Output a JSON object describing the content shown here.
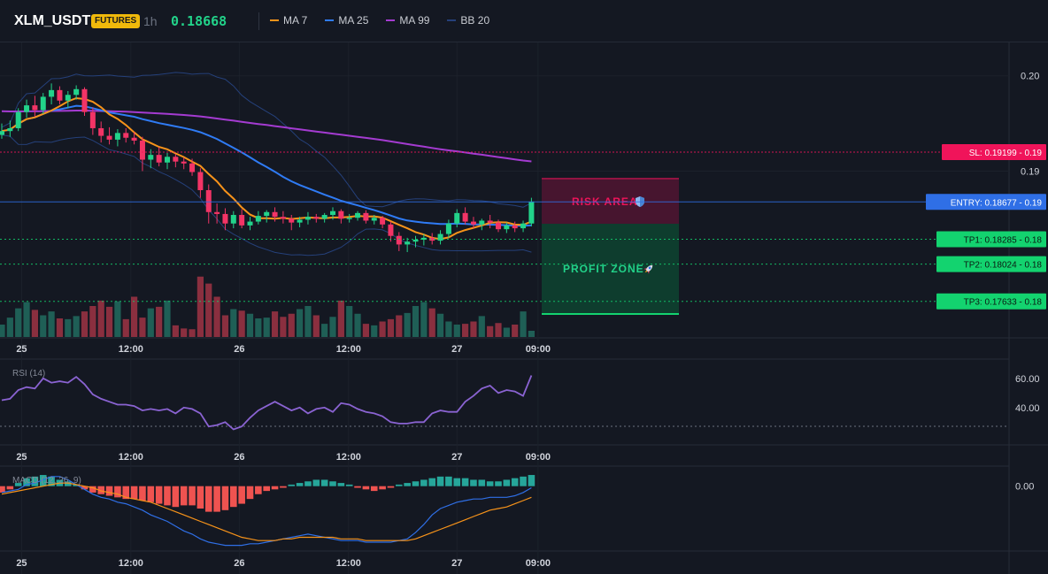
{
  "header": {
    "symbol": "XLM_USDT",
    "badge": "FUTURES",
    "interval": "1h",
    "last_price": "0.18668"
  },
  "legend": [
    {
      "name": "MA 7",
      "color": "#f7931a"
    },
    {
      "name": "MA 25",
      "color": "#2f7bf5"
    },
    {
      "name": "MA 99",
      "color": "#a43bd1"
    },
    {
      "name": "BB 20",
      "color": "#25407a"
    }
  ],
  "colors": {
    "up": "#22d38a",
    "down": "#f23466",
    "vol_up": "#1f5f56",
    "vol_down": "#8a2f3f",
    "sl": "#f0145a",
    "entry": "#2f6fe6",
    "tp": "#13d36f",
    "risk_fill": "#5a1a36",
    "profit_fill": "#0f4a35",
    "rsi": "#8a63d2",
    "macd_line": "#2f6fe6",
    "signal_line": "#f7931a",
    "hist_pos": "#26a69a",
    "hist_neg": "#ef5350"
  },
  "x_axis_labels": [
    "25",
    "12:00",
    "26",
    "12:00",
    "27",
    "09:00"
  ],
  "levels": {
    "sl": {
      "label": "SL: 0.19199 - 0.19",
      "value": 0.19199
    },
    "entry": {
      "label": "ENTRY: 0.18677 - 0.19",
      "value": 0.18677
    },
    "tp1": {
      "label": "TP1: 0.18285 - 0.18",
      "value": 0.18285
    },
    "tp2": {
      "label": "TP2: 0.18024 - 0.18",
      "value": 0.18024
    },
    "tp3": {
      "label": "TP3: 0.17633 - 0.18",
      "value": 0.17633
    }
  },
  "zones": {
    "risk_label": "RISK AREA",
    "profit_label": "PROFIT ZONE"
  },
  "panels": {
    "rsi_label": "RSI (14)",
    "macd_label": "MACD (12, 26, 9)"
  },
  "chart_data": [
    {
      "type": "candlestick",
      "title": "XLM_USDT",
      "y_ticks": [
        "0.20",
        "0.19"
      ],
      "y_tick_values": [
        0.2,
        0.19
      ],
      "ylim": [
        0.1725,
        0.2035
      ],
      "candles": [
        [
          0.1938,
          0.195,
          0.1934,
          0.1942
        ],
        [
          0.1942,
          0.1953,
          0.1936,
          0.1945
        ],
        [
          0.1945,
          0.1966,
          0.1942,
          0.1962
        ],
        [
          0.1962,
          0.1975,
          0.1956,
          0.1969
        ],
        [
          0.1969,
          0.1979,
          0.1957,
          0.1964
        ],
        [
          0.1964,
          0.1982,
          0.196,
          0.1978
        ],
        [
          0.1978,
          0.1992,
          0.197,
          0.1985
        ],
        [
          0.1985,
          0.1989,
          0.197,
          0.1974
        ],
        [
          0.1974,
          0.1984,
          0.1966,
          0.198
        ],
        [
          0.198,
          0.199,
          0.1975,
          0.1986
        ],
        [
          0.1986,
          0.1988,
          0.1958,
          0.1962
        ],
        [
          0.1962,
          0.1967,
          0.1938,
          0.1945
        ],
        [
          0.1945,
          0.1952,
          0.193,
          0.1937
        ],
        [
          0.1937,
          0.1946,
          0.1928,
          0.1933
        ],
        [
          0.1933,
          0.1944,
          0.1926,
          0.194
        ],
        [
          0.194,
          0.1945,
          0.193,
          0.1935
        ],
        [
          0.1935,
          0.1941,
          0.1928,
          0.1932
        ],
        [
          0.1932,
          0.1936,
          0.19,
          0.1912
        ],
        [
          0.1912,
          0.1923,
          0.1903,
          0.1917
        ],
        [
          0.1917,
          0.1925,
          0.1905,
          0.1909
        ],
        [
          0.1909,
          0.1919,
          0.1902,
          0.1915
        ],
        [
          0.1915,
          0.1918,
          0.1904,
          0.191
        ],
        [
          0.191,
          0.1914,
          0.1902,
          0.1908
        ],
        [
          0.1908,
          0.1913,
          0.1895,
          0.1899
        ],
        [
          0.1899,
          0.1903,
          0.1872,
          0.188
        ],
        [
          0.188,
          0.1886,
          0.1845,
          0.1857
        ],
        [
          0.1857,
          0.1866,
          0.1845,
          0.1855
        ],
        [
          0.1855,
          0.1861,
          0.1838,
          0.1845
        ],
        [
          0.1845,
          0.1858,
          0.184,
          0.1854
        ],
        [
          0.1854,
          0.186,
          0.184,
          0.1843
        ],
        [
          0.1843,
          0.1852,
          0.1838,
          0.1847
        ],
        [
          0.1847,
          0.1858,
          0.1844,
          0.1853
        ],
        [
          0.1853,
          0.1859,
          0.1846,
          0.1857
        ],
        [
          0.1857,
          0.1862,
          0.1847,
          0.1852
        ],
        [
          0.1852,
          0.1858,
          0.1845,
          0.185
        ],
        [
          0.185,
          0.1854,
          0.1838,
          0.1846
        ],
        [
          0.1846,
          0.1852,
          0.1841,
          0.1849
        ],
        [
          0.1849,
          0.1857,
          0.1844,
          0.1852
        ],
        [
          0.1852,
          0.1855,
          0.1846,
          0.185
        ],
        [
          0.185,
          0.1856,
          0.1846,
          0.1854
        ],
        [
          0.1854,
          0.1862,
          0.1849,
          0.1858
        ],
        [
          0.1858,
          0.186,
          0.1845,
          0.185
        ],
        [
          0.185,
          0.1855,
          0.1846,
          0.1851
        ],
        [
          0.1851,
          0.1858,
          0.1848,
          0.1856
        ],
        [
          0.1856,
          0.1859,
          0.1845,
          0.1848
        ],
        [
          0.1848,
          0.1854,
          0.1844,
          0.1851
        ],
        [
          0.1851,
          0.1853,
          0.184,
          0.1844
        ],
        [
          0.1844,
          0.1847,
          0.1826,
          0.1832
        ],
        [
          0.1832,
          0.1836,
          0.1816,
          0.1823
        ],
        [
          0.1823,
          0.183,
          0.1815,
          0.1826
        ],
        [
          0.1826,
          0.1832,
          0.182,
          0.1828
        ],
        [
          0.1828,
          0.1834,
          0.1822,
          0.183
        ],
        [
          0.183,
          0.1835,
          0.1823,
          0.1827
        ],
        [
          0.1827,
          0.1838,
          0.1823,
          0.1834
        ],
        [
          0.1834,
          0.1849,
          0.183,
          0.1845
        ],
        [
          0.1845,
          0.186,
          0.1841,
          0.1856
        ],
        [
          0.1856,
          0.1862,
          0.1844,
          0.1847
        ],
        [
          0.1847,
          0.1852,
          0.184,
          0.1844
        ],
        [
          0.1844,
          0.185,
          0.1838,
          0.1848
        ],
        [
          0.1848,
          0.1854,
          0.184,
          0.1846
        ],
        [
          0.1846,
          0.1849,
          0.1836,
          0.1839
        ],
        [
          0.1839,
          0.1846,
          0.1835,
          0.1843
        ],
        [
          0.1843,
          0.1847,
          0.1836,
          0.184
        ],
        [
          0.184,
          0.1848,
          0.1836,
          0.1845
        ],
        [
          0.1845,
          0.1872,
          0.1842,
          0.1868
        ]
      ],
      "volume": [
        16,
        25,
        37,
        45,
        35,
        28,
        33,
        24,
        23,
        27,
        33,
        40,
        47,
        39,
        46,
        23,
        52,
        25,
        37,
        39,
        47,
        15,
        11,
        10,
        78,
        69,
        52,
        28,
        36,
        34,
        30,
        24,
        25,
        33,
        26,
        30,
        36,
        40,
        28,
        17,
        26,
        47,
        40,
        30,
        17,
        15,
        20,
        23,
        28,
        31,
        40,
        45,
        37,
        30,
        20,
        16,
        17,
        20,
        27,
        14,
        18,
        12,
        16,
        33,
        8
      ],
      "volume_max": 80
    },
    {
      "type": "line",
      "title": "RSI (14)",
      "y_ticks": [
        "60.00",
        "40.00"
      ],
      "y_tick_values": [
        60,
        40
      ],
      "ylim": [
        15,
        72
      ],
      "values": [
        45,
        46,
        52,
        54,
        53,
        60,
        57,
        58,
        57,
        61,
        56,
        49,
        46,
        44,
        42,
        42,
        41,
        38,
        39,
        38,
        39,
        36,
        40,
        39,
        36,
        27,
        28,
        30,
        25,
        27,
        33,
        38,
        41,
        44,
        41,
        38,
        40,
        36,
        39,
        40,
        37,
        43,
        42,
        39,
        37,
        36,
        34,
        30,
        29,
        29,
        30,
        30,
        36,
        38,
        37,
        37,
        44,
        48,
        53,
        55,
        50,
        52,
        51,
        48,
        62
      ]
    },
    {
      "type": "bar",
      "title": "MACD (12, 26, 9)",
      "y_ticks": [
        "0.00"
      ],
      "y_tick_values": [
        0
      ],
      "ylim": [
        -0.004,
        0.0012
      ],
      "histogram": [
        -0.0004,
        -0.0002,
        0.0002,
        0.0005,
        0.0006,
        0.0007,
        0.0006,
        0.0004,
        0.0003,
        0.0001,
        -0.0002,
        -0.0004,
        -0.0005,
        -0.0006,
        -0.0007,
        -0.0008,
        -0.0008,
        -0.0009,
        -0.001,
        -0.0011,
        -0.0012,
        -0.0013,
        -0.0012,
        -0.0012,
        -0.0014,
        -0.0016,
        -0.0016,
        -0.0015,
        -0.0013,
        -0.0011,
        -0.0008,
        -0.0005,
        -0.0003,
        -0.0002,
        -0.0001,
        0.0001,
        0.0002,
        0.0003,
        0.0004,
        0.0004,
        0.0003,
        0.0002,
        0.0001,
        -0.0001,
        -0.0002,
        -0.0003,
        -0.0002,
        -0.0001,
        0.0001,
        0.0002,
        0.0003,
        0.0004,
        0.0005,
        0.0006,
        0.0006,
        0.0005,
        0.0005,
        0.0004,
        0.0004,
        0.0003,
        0.0003,
        0.0004,
        0.0005,
        0.0006,
        0.0007
      ],
      "macd": [
        -0.0004,
        -0.0003,
        -0.0002,
        0.0001,
        0.0002,
        0.0004,
        0.0006,
        0.0006,
        0.0004,
        0.0001,
        -0.0002,
        -0.0005,
        -0.0007,
        -0.0008,
        -0.001,
        -0.0011,
        -0.0013,
        -0.0015,
        -0.0018,
        -0.002,
        -0.0022,
        -0.0025,
        -0.0028,
        -0.003,
        -0.0033,
        -0.0035,
        -0.0036,
        -0.0037,
        -0.0037,
        -0.0037,
        -0.0036,
        -0.0036,
        -0.0035,
        -0.0034,
        -0.0033,
        -0.0032,
        -0.0031,
        -0.003,
        -0.0031,
        -0.0032,
        -0.0033,
        -0.0034,
        -0.0034,
        -0.0034,
        -0.0035,
        -0.0035,
        -0.0035,
        -0.0035,
        -0.0034,
        -0.0033,
        -0.0029,
        -0.0024,
        -0.0018,
        -0.0014,
        -0.0012,
        -0.001,
        -0.0009,
        -0.0008,
        -0.0008,
        -0.0007,
        -0.0007,
        -0.0007,
        -0.0006,
        -0.0004,
        -0.0001
      ],
      "signal": [
        -0.0005,
        -0.0004,
        -0.0003,
        -0.0002,
        -0.0001,
        0.0,
        0.0001,
        0.0002,
        0.0002,
        0.0001,
        0.0,
        -0.0001,
        -0.0003,
        -0.0004,
        -0.0005,
        -0.0007,
        -0.0008,
        -0.0009,
        -0.001,
        -0.0012,
        -0.0014,
        -0.0016,
        -0.0018,
        -0.002,
        -0.0022,
        -0.0024,
        -0.0026,
        -0.0028,
        -0.003,
        -0.0032,
        -0.0033,
        -0.0034,
        -0.0034,
        -0.0034,
        -0.0033,
        -0.0033,
        -0.0032,
        -0.0032,
        -0.0032,
        -0.0032,
        -0.0032,
        -0.0033,
        -0.0033,
        -0.0033,
        -0.0034,
        -0.0034,
        -0.0034,
        -0.0034,
        -0.0034,
        -0.0034,
        -0.0033,
        -0.0031,
        -0.0029,
        -0.0027,
        -0.0025,
        -0.0023,
        -0.0021,
        -0.0019,
        -0.0017,
        -0.0015,
        -0.0014,
        -0.0013,
        -0.0011,
        -0.0009,
        -0.0007
      ]
    }
  ]
}
